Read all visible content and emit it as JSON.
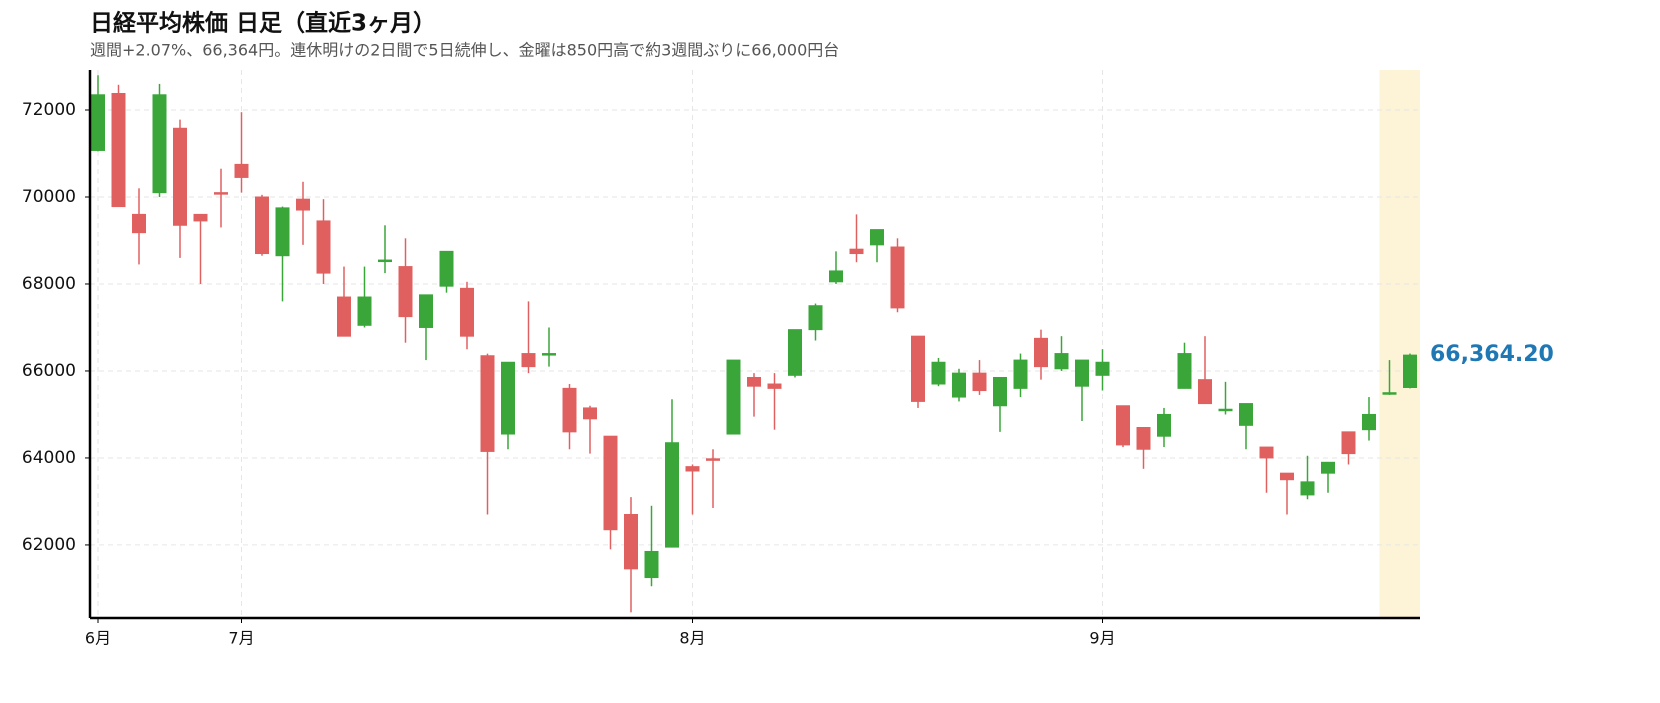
{
  "chart_data": {
    "type": "candlestick",
    "title": "日経平均株価 日足（直近3ヶ月）",
    "subtitle": "週間+2.07%、66,364円。連休明けの2日間で5日続伸し、金曜は850円高で約3週間ぶりに66,000円台",
    "categories": [
      "6月",
      null,
      null,
      null,
      null,
      null,
      null,
      "7月",
      null,
      null,
      null,
      null,
      null,
      null,
      null,
      null,
      null,
      null,
      null,
      null,
      null,
      null,
      null,
      null,
      null,
      null,
      null,
      null,
      null,
      "8月",
      null,
      null,
      null,
      null,
      null,
      null,
      null,
      null,
      null,
      null,
      null,
      null,
      null,
      null,
      null,
      null,
      null,
      null,
      null,
      "9月",
      null,
      null,
      null,
      null,
      null,
      null,
      null,
      null,
      null,
      null,
      null,
      null,
      null,
      null,
      null
    ],
    "open": [
      71070,
      72380,
      69600,
      70100,
      71580,
      69600,
      70100,
      70750,
      70000,
      68650,
      69950,
      69450,
      67700,
      67050,
      68530,
      68400,
      67000,
      67950,
      67900,
      66350,
      64550,
      66400,
      66380,
      65600,
      65150,
      64500,
      62700,
      61250,
      61950,
      63800,
      63980,
      64550,
      65850,
      65700,
      65900,
      66950,
      68050,
      68800,
      68900,
      68850,
      66800,
      65700,
      65400,
      65950,
      65200,
      65600,
      66750,
      66050,
      65650,
      65900,
      65200,
      64700,
      64500,
      65600,
      65800,
      65100,
      64750,
      64250,
      63650,
      63150,
      63650,
      64600,
      64650,
      65480,
      65620
    ],
    "high": [
      72800,
      72580,
      70200,
      72600,
      71780,
      69600,
      70650,
      71950,
      70050,
      69780,
      70350,
      69950,
      68400,
      68400,
      69350,
      69050,
      67750,
      68750,
      68050,
      66400,
      66200,
      67600,
      67000,
      65700,
      65200,
      64500,
      63100,
      62900,
      65350,
      63850,
      64200,
      66250,
      65950,
      65950,
      66950,
      67550,
      68750,
      69600,
      69250,
      69050,
      66800,
      66300,
      66050,
      66250,
      65850,
      66400,
      66950,
      66800,
      66250,
      66500,
      65200,
      64700,
      65150,
      66650,
      66800,
      65750,
      65250,
      64250,
      63650,
      64050,
      63900,
      64600,
      65400,
      66250,
      66400
    ],
    "low": [
      71050,
      69780,
      68450,
      70000,
      68600,
      68000,
      69300,
      70100,
      68650,
      67600,
      68900,
      68000,
      66800,
      67000,
      68250,
      66650,
      66250,
      67800,
      66500,
      62700,
      64200,
      65950,
      66100,
      64200,
      64100,
      61900,
      60450,
      61050,
      61950,
      62700,
      62850,
      64550,
      64950,
      64650,
      65850,
      66700,
      68000,
      68500,
      68500,
      67350,
      65150,
      65650,
      65300,
      65450,
      64600,
      65400,
      65800,
      66000,
      64850,
      65550,
      64250,
      63750,
      64250,
      65600,
      65250,
      65000,
      64200,
      63200,
      62700,
      63050,
      63200,
      63850,
      64400,
      65450,
      65600
    ],
    "close": [
      72350,
      69780,
      69180,
      72350,
      69350,
      69450,
      70080,
      70450,
      68700,
      69750,
      69700,
      68250,
      66800,
      67700,
      68550,
      67250,
      67750,
      68750,
      66800,
      64150,
      66200,
      66100,
      66400,
      64600,
      64900,
      62350,
      61450,
      61850,
      64350,
      63700,
      63950,
      66250,
      65650,
      65600,
      66950,
      67500,
      68300,
      68700,
      69250,
      67450,
      65300,
      66200,
      65950,
      65550,
      65850,
      66250,
      66100,
      66400,
      66250,
      66200,
      64300,
      64200,
      65000,
      66400,
      65250,
      65120,
      65250,
      64000,
      63500,
      63450,
      63900,
      64100,
      65000,
      65500,
      66364.2
    ],
    "last_label": {
      "value": 66364.2,
      "label": "66,364.20"
    },
    "up_color": "#3aa63a",
    "down_color": "#e06060",
    "label_color": "#1f77b4",
    "ylim": [
      60320,
      72920
    ],
    "yticks": [
      62000,
      64000,
      66000,
      68000,
      70000,
      72000
    ],
    "grid": true
  }
}
